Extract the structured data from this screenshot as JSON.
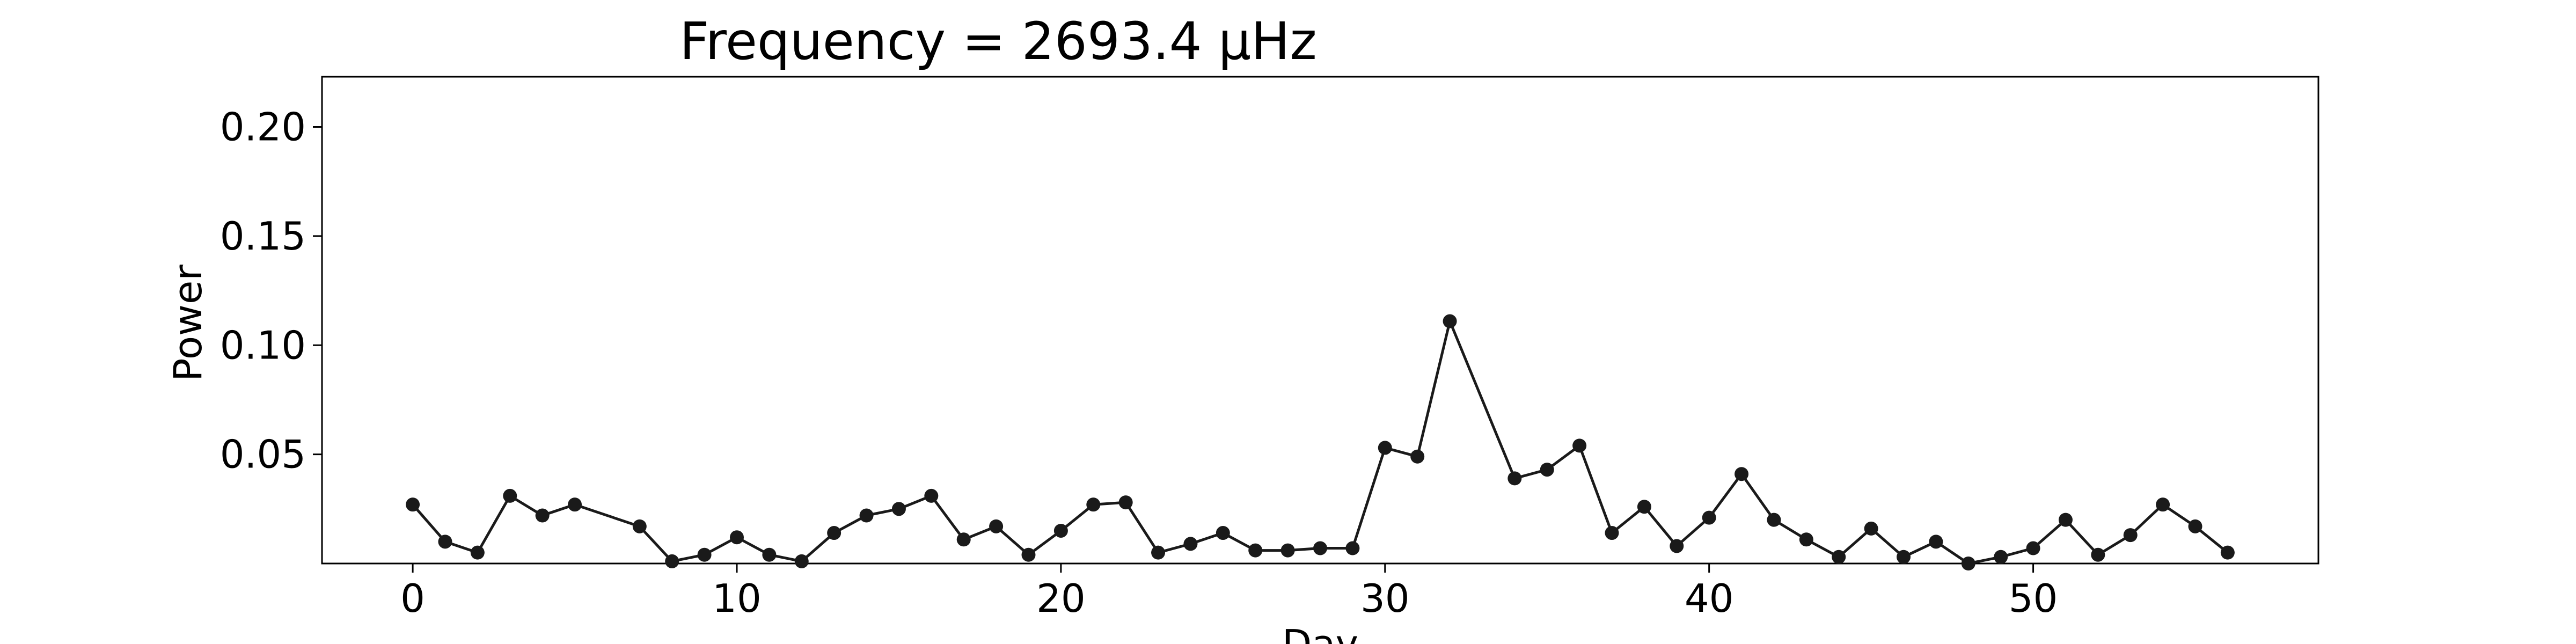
{
  "chart_data": {
    "type": "line",
    "title": "Frequency = 2693.4 μHz",
    "xlabel": "Day",
    "ylabel": "Power",
    "xlim": [
      -2.8,
      58.8
    ],
    "ylim": [
      0.0,
      0.223
    ],
    "xticks": [
      0,
      10,
      20,
      30,
      40,
      50
    ],
    "yticks": [
      0.05,
      0.1,
      0.15,
      0.2
    ],
    "xtick_labels": [
      "0",
      "10",
      "20",
      "30",
      "40",
      "50"
    ],
    "ytick_labels": [
      "0.05",
      "0.10",
      "0.15",
      "0.20"
    ],
    "grid": false,
    "series": [
      {
        "color": "#1a1a1a",
        "marker": "circle",
        "x": [
          0,
          1,
          2,
          3,
          4,
          5,
          7,
          8,
          9,
          10,
          11,
          12,
          13,
          14,
          15,
          16,
          17,
          18,
          19,
          20,
          21,
          22,
          23,
          24,
          25,
          26,
          27,
          28,
          29,
          30,
          31,
          32,
          34,
          35,
          36,
          37,
          38,
          39,
          40,
          41,
          42,
          43,
          44,
          45,
          46,
          47,
          48,
          49,
          50,
          51,
          52,
          53,
          54,
          55,
          56
        ],
        "y": [
          0.027,
          0.01,
          0.005,
          0.031,
          0.022,
          0.027,
          0.017,
          0.001,
          0.004,
          0.012,
          0.004,
          0.001,
          0.014,
          0.022,
          0.025,
          0.031,
          0.011,
          0.017,
          0.004,
          0.015,
          0.027,
          0.028,
          0.005,
          0.009,
          0.014,
          0.006,
          0.006,
          0.007,
          0.007,
          0.053,
          0.049,
          0.111,
          0.039,
          0.043,
          0.054,
          0.014,
          0.026,
          0.008,
          0.021,
          0.041,
          0.02,
          0.011,
          0.003,
          0.016,
          0.003,
          0.01,
          0.0,
          0.003,
          0.007,
          0.02,
          0.004,
          0.013,
          0.027,
          0.017,
          0.005
        ]
      }
    ]
  }
}
